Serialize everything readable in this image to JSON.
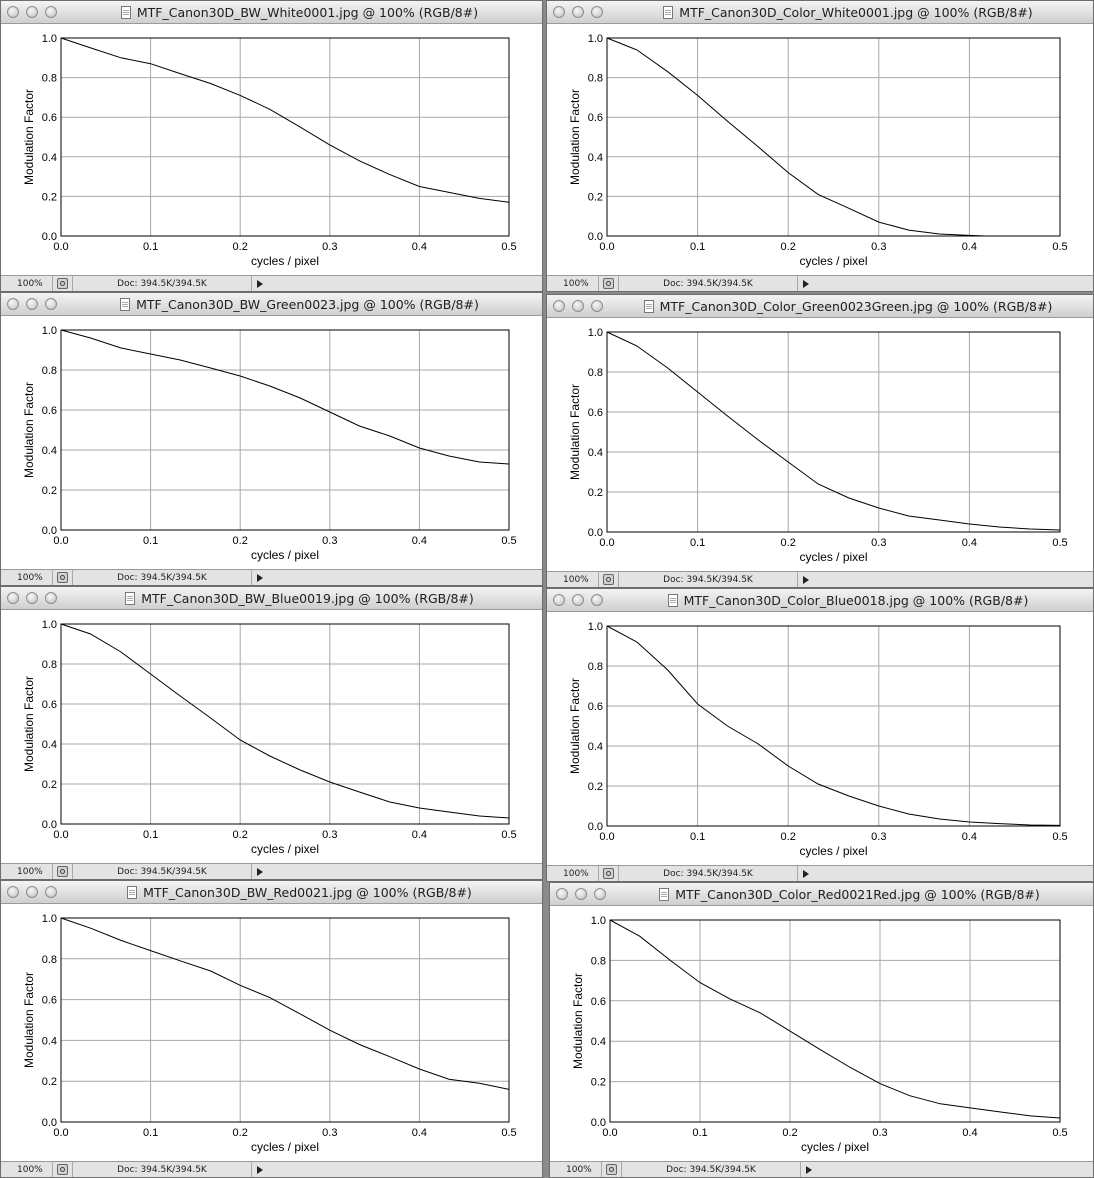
{
  "windows": [
    {
      "id": "bw-white",
      "title": "MTF_Canon30D_BW_White0001.jpg @ 100% (RGB/8#)",
      "status": {
        "zoom": "100%",
        "doc": "Doc: 394.5K/394.5K"
      },
      "chart_data": {
        "type": "line",
        "xlabel": "cycles / pixel",
        "ylabel": "Modulation Factor",
        "xlim": [
          0,
          0.5
        ],
        "ylim": [
          0,
          1
        ],
        "xticks": [
          "0.0",
          "0.1",
          "0.2",
          "0.3",
          "0.4",
          "0.5"
        ],
        "yticks": [
          "0.0",
          "0.2",
          "0.4",
          "0.6",
          "0.8",
          "1.0"
        ],
        "grid": true,
        "x": [
          0,
          0.033,
          0.067,
          0.1,
          0.133,
          0.167,
          0.2,
          0.233,
          0.267,
          0.3,
          0.333,
          0.367,
          0.4,
          0.433,
          0.467,
          0.5
        ],
        "y": [
          1.0,
          0.95,
          0.9,
          0.87,
          0.82,
          0.77,
          0.71,
          0.64,
          0.55,
          0.46,
          0.38,
          0.31,
          0.25,
          0.22,
          0.19,
          0.17
        ]
      }
    },
    {
      "id": "color-white",
      "title": "MTF_Canon30D_Color_White0001.jpg @ 100% (RGB/8#)",
      "status": {
        "zoom": "100%",
        "doc": "Doc: 394.5K/394.5K"
      },
      "chart_data": {
        "type": "line",
        "xlabel": "cycles / pixel",
        "ylabel": "Modulation Factor",
        "xlim": [
          0,
          0.5
        ],
        "ylim": [
          0,
          1
        ],
        "xticks": [
          "0.0",
          "0.1",
          "0.2",
          "0.3",
          "0.4",
          "0.5"
        ],
        "yticks": [
          "0.0",
          "0.2",
          "0.4",
          "0.6",
          "0.8",
          "1.0"
        ],
        "grid": true,
        "x": [
          0,
          0.033,
          0.067,
          0.1,
          0.133,
          0.167,
          0.2,
          0.233,
          0.267,
          0.3,
          0.333,
          0.367,
          0.4,
          0.417
        ],
        "y": [
          1.0,
          0.94,
          0.83,
          0.71,
          0.58,
          0.45,
          0.32,
          0.21,
          0.14,
          0.07,
          0.03,
          0.01,
          0.003,
          0.0
        ]
      }
    },
    {
      "id": "bw-green",
      "title": "MTF_Canon30D_BW_Green0023.jpg @ 100% (RGB/8#)",
      "status": {
        "zoom": "100%",
        "doc": "Doc: 394.5K/394.5K"
      },
      "chart_data": {
        "type": "line",
        "xlabel": "cycles / pixel",
        "ylabel": "Modulation Factor",
        "xlim": [
          0,
          0.5
        ],
        "ylim": [
          0,
          1
        ],
        "xticks": [
          "0.0",
          "0.1",
          "0.2",
          "0.3",
          "0.4",
          "0.5"
        ],
        "yticks": [
          "0.0",
          "0.2",
          "0.4",
          "0.6",
          "0.8",
          "1.0"
        ],
        "grid": true,
        "x": [
          0,
          0.033,
          0.067,
          0.1,
          0.133,
          0.167,
          0.2,
          0.233,
          0.267,
          0.3,
          0.333,
          0.367,
          0.4,
          0.433,
          0.467,
          0.5
        ],
        "y": [
          1.0,
          0.96,
          0.91,
          0.88,
          0.85,
          0.81,
          0.77,
          0.72,
          0.66,
          0.59,
          0.52,
          0.47,
          0.41,
          0.37,
          0.34,
          0.33
        ]
      }
    },
    {
      "id": "color-green",
      "title": "MTF_Canon30D_Color_Green0023Green.jpg @ 100% (RGB/8#)",
      "status": {
        "zoom": "100%",
        "doc": "Doc: 394.5K/394.5K"
      },
      "chart_data": {
        "type": "line",
        "xlabel": "cycles / pixel",
        "ylabel": "Modulation Factor",
        "xlim": [
          0,
          0.5
        ],
        "ylim": [
          0,
          1
        ],
        "xticks": [
          "0.0",
          "0.1",
          "0.2",
          "0.3",
          "0.4",
          "0.5"
        ],
        "yticks": [
          "0.0",
          "0.2",
          "0.4",
          "0.6",
          "0.8",
          "1.0"
        ],
        "grid": true,
        "x": [
          0,
          0.033,
          0.067,
          0.1,
          0.133,
          0.167,
          0.2,
          0.233,
          0.267,
          0.3,
          0.333,
          0.367,
          0.4,
          0.433,
          0.467,
          0.5
        ],
        "y": [
          1.0,
          0.93,
          0.82,
          0.7,
          0.58,
          0.46,
          0.35,
          0.24,
          0.17,
          0.12,
          0.08,
          0.06,
          0.04,
          0.025,
          0.015,
          0.01
        ]
      }
    },
    {
      "id": "bw-blue",
      "title": "MTF_Canon30D_BW_Blue0019.jpg @ 100% (RGB/8#)",
      "status": {
        "zoom": "100%",
        "doc": "Doc: 394.5K/394.5K"
      },
      "chart_data": {
        "type": "line",
        "xlabel": "cycles / pixel",
        "ylabel": "Modulation Factor",
        "xlim": [
          0,
          0.5
        ],
        "ylim": [
          0,
          1
        ],
        "xticks": [
          "0.0",
          "0.1",
          "0.2",
          "0.3",
          "0.4",
          "0.5"
        ],
        "yticks": [
          "0.0",
          "0.2",
          "0.4",
          "0.6",
          "0.8",
          "1.0"
        ],
        "grid": true,
        "x": [
          0,
          0.033,
          0.067,
          0.1,
          0.133,
          0.167,
          0.2,
          0.233,
          0.267,
          0.3,
          0.333,
          0.367,
          0.4,
          0.433,
          0.467,
          0.5
        ],
        "y": [
          1.0,
          0.95,
          0.86,
          0.75,
          0.64,
          0.53,
          0.42,
          0.34,
          0.27,
          0.21,
          0.16,
          0.11,
          0.08,
          0.06,
          0.04,
          0.03
        ]
      }
    },
    {
      "id": "color-blue",
      "title": "MTF_Canon30D_Color_Blue0018.jpg @ 100% (RGB/8#)",
      "status": {
        "zoom": "100%",
        "doc": "Doc: 394.5K/394.5K"
      },
      "chart_data": {
        "type": "line",
        "xlabel": "cycles / pixel",
        "ylabel": "Modulation Factor",
        "xlim": [
          0,
          0.5
        ],
        "ylim": [
          0,
          1
        ],
        "xticks": [
          "0.0",
          "0.1",
          "0.2",
          "0.3",
          "0.4",
          "0.5"
        ],
        "yticks": [
          "0.0",
          "0.2",
          "0.4",
          "0.6",
          "0.8",
          "1.0"
        ],
        "grid": true,
        "x": [
          0,
          0.033,
          0.067,
          0.1,
          0.133,
          0.167,
          0.2,
          0.233,
          0.267,
          0.3,
          0.333,
          0.367,
          0.4,
          0.433,
          0.467,
          0.5
        ],
        "y": [
          1.0,
          0.92,
          0.78,
          0.61,
          0.5,
          0.41,
          0.3,
          0.21,
          0.15,
          0.1,
          0.06,
          0.035,
          0.02,
          0.012,
          0.005,
          0.003
        ]
      }
    },
    {
      "id": "bw-red",
      "title": "MTF_Canon30D_BW_Red0021.jpg @ 100% (RGB/8#)",
      "status": {
        "zoom": "100%",
        "doc": "Doc: 394.5K/394.5K"
      },
      "chart_data": {
        "type": "line",
        "xlabel": "cycles / pixel",
        "ylabel": "Modulation Factor",
        "xlim": [
          0,
          0.5
        ],
        "ylim": [
          0,
          1
        ],
        "xticks": [
          "0.0",
          "0.1",
          "0.2",
          "0.3",
          "0.4",
          "0.5"
        ],
        "yticks": [
          "0.0",
          "0.2",
          "0.4",
          "0.6",
          "0.8",
          "1.0"
        ],
        "grid": true,
        "x": [
          0,
          0.033,
          0.067,
          0.1,
          0.133,
          0.167,
          0.2,
          0.233,
          0.267,
          0.3,
          0.333,
          0.367,
          0.4,
          0.433,
          0.467,
          0.5
        ],
        "y": [
          1.0,
          0.95,
          0.89,
          0.84,
          0.79,
          0.74,
          0.67,
          0.61,
          0.53,
          0.45,
          0.38,
          0.32,
          0.26,
          0.21,
          0.19,
          0.16
        ]
      }
    },
    {
      "id": "color-red",
      "title": "MTF_Canon30D_Color_Red0021Red.jpg @ 100% (RGB/8#)",
      "status": {
        "zoom": "100%",
        "doc": "Doc: 394.5K/394.5K"
      },
      "chart_data": {
        "type": "line",
        "xlabel": "cycles / pixel",
        "ylabel": "Modulation Factor",
        "xlim": [
          0,
          0.5
        ],
        "ylim": [
          0,
          1
        ],
        "xticks": [
          "0.0",
          "0.1",
          "0.2",
          "0.3",
          "0.4",
          "0.5"
        ],
        "yticks": [
          "0.0",
          "0.2",
          "0.4",
          "0.6",
          "0.8",
          "1.0"
        ],
        "grid": true,
        "x": [
          0,
          0.033,
          0.067,
          0.1,
          0.133,
          0.167,
          0.2,
          0.233,
          0.267,
          0.3,
          0.333,
          0.367,
          0.4,
          0.433,
          0.467,
          0.5
        ],
        "y": [
          1.0,
          0.92,
          0.8,
          0.69,
          0.61,
          0.54,
          0.45,
          0.36,
          0.27,
          0.19,
          0.13,
          0.09,
          0.07,
          0.05,
          0.03,
          0.02
        ]
      }
    }
  ]
}
